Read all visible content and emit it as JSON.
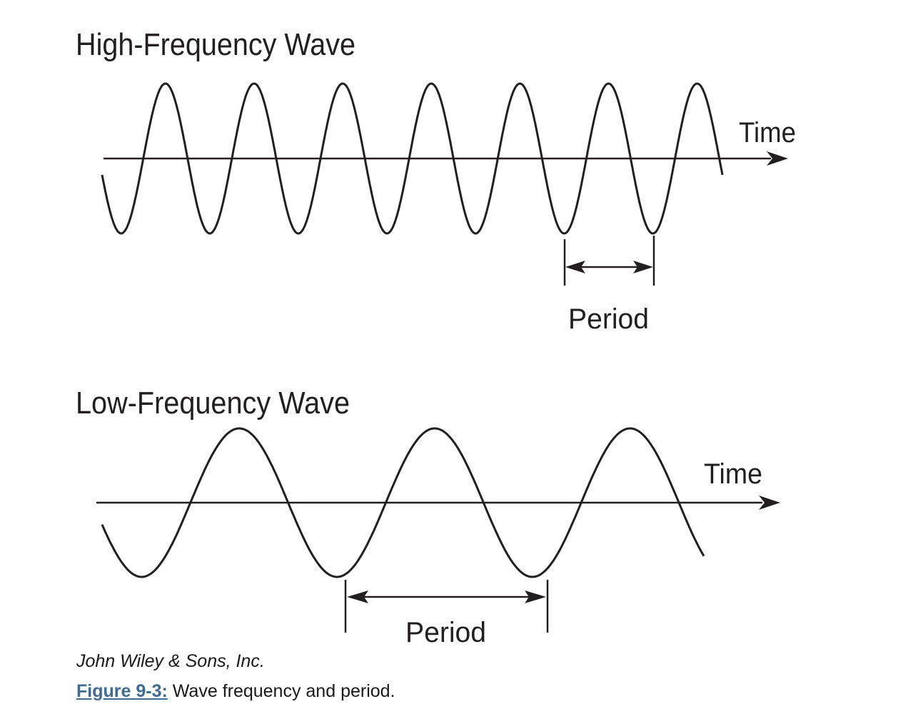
{
  "diagrams": {
    "high": {
      "title": "High-Frequency Wave",
      "axis_label": "Time",
      "period_label": "Period",
      "cycles": 7
    },
    "low": {
      "title": "Low-Frequency Wave",
      "axis_label": "Time",
      "period_label": "Period",
      "cycles": 3
    }
  },
  "credit": "John Wiley & Sons, Inc.",
  "caption": {
    "label": "Figure 9-3:",
    "text": "Wave frequency and period."
  },
  "colors": {
    "ink": "#231f20",
    "caption_link": "#3f6b93"
  }
}
